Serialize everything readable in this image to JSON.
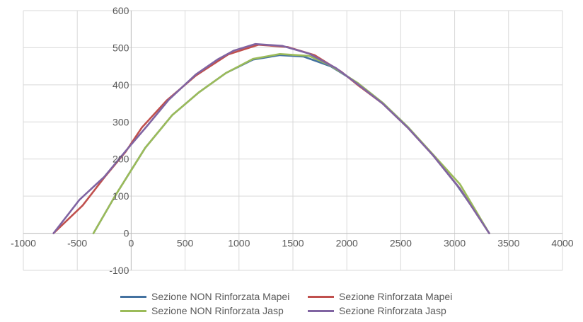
{
  "chart_data": {
    "type": "line",
    "title": "",
    "xlabel": "",
    "ylabel": "",
    "xlim": [
      -1000,
      4000
    ],
    "ylim": [
      -100,
      600
    ],
    "x_ticks": [
      "-1000",
      "-500",
      "0",
      "500",
      "1000",
      "1500",
      "2000",
      "2500",
      "3000",
      "3500",
      "4000"
    ],
    "y_ticks": [
      "600",
      "500",
      "400",
      "300",
      "200",
      "100",
      "0",
      "-100"
    ],
    "grid": true,
    "legend_position": "bottom",
    "series": [
      {
        "name": "Sezione NON Rinforzata Mapei",
        "color": "#4472A0",
        "points": [
          [
            -350,
            0
          ],
          [
            -150,
            100
          ],
          [
            130,
            230
          ],
          [
            380,
            318
          ],
          [
            630,
            380
          ],
          [
            880,
            432
          ],
          [
            1130,
            468
          ],
          [
            1380,
            480
          ],
          [
            1600,
            476
          ],
          [
            1850,
            450
          ],
          [
            2100,
            405
          ],
          [
            2330,
            352
          ],
          [
            2570,
            285
          ],
          [
            2800,
            210
          ],
          [
            3020,
            130
          ],
          [
            3200,
            55
          ],
          [
            3320,
            0
          ]
        ]
      },
      {
        "name": "Sezione Rinforzata Mapei",
        "color": "#C0504D",
        "points": [
          [
            -720,
            0
          ],
          [
            -450,
            75
          ],
          [
            -250,
            150
          ],
          [
            -50,
            220
          ],
          [
            100,
            285
          ],
          [
            330,
            358
          ],
          [
            600,
            425
          ],
          [
            900,
            482
          ],
          [
            1180,
            508
          ],
          [
            1450,
            502
          ],
          [
            1700,
            480
          ],
          [
            1950,
            435
          ],
          [
            2100,
            400
          ],
          [
            2330,
            350
          ],
          [
            2570,
            283
          ],
          [
            2800,
            210
          ],
          [
            3050,
            120
          ],
          [
            3320,
            0
          ]
        ]
      },
      {
        "name": "Sezione NON Rinforzata Jasp",
        "color": "#9BBB59",
        "points": [
          [
            -350,
            0
          ],
          [
            -150,
            100
          ],
          [
            130,
            230
          ],
          [
            380,
            318
          ],
          [
            630,
            380
          ],
          [
            880,
            432
          ],
          [
            1130,
            470
          ],
          [
            1380,
            483
          ],
          [
            1650,
            478
          ],
          [
            1850,
            452
          ],
          [
            2100,
            405
          ],
          [
            2330,
            352
          ],
          [
            2570,
            285
          ],
          [
            2800,
            212
          ],
          [
            3050,
            132
          ],
          [
            3320,
            0
          ]
        ]
      },
      {
        "name": "Sezione  Rinforzata Jasp",
        "color": "#8064A2",
        "points": [
          [
            -720,
            0
          ],
          [
            -480,
            90
          ],
          [
            -250,
            152
          ],
          [
            -50,
            222
          ],
          [
            150,
            290
          ],
          [
            350,
            360
          ],
          [
            600,
            428
          ],
          [
            800,
            468
          ],
          [
            950,
            492
          ],
          [
            1150,
            510
          ],
          [
            1400,
            505
          ],
          [
            1650,
            484
          ],
          [
            1900,
            445
          ],
          [
            2100,
            402
          ],
          [
            2330,
            350
          ],
          [
            2570,
            283
          ],
          [
            2800,
            210
          ],
          [
            3050,
            120
          ],
          [
            3320,
            0
          ]
        ]
      }
    ]
  }
}
